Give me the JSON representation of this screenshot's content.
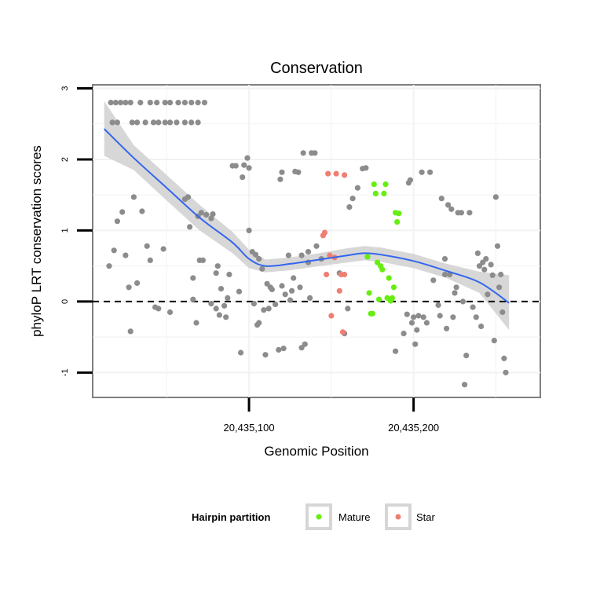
{
  "chart_data": {
    "type": "scatter",
    "title": "Conservation",
    "xlabel": "Genomic Position",
    "ylabel": "phyloP LRT conservation scores",
    "xlim": [
      20435005,
      20435277
    ],
    "ylim": [
      -1.35,
      3.05
    ],
    "x_ticks": [
      {
        "value": 20435100,
        "label": "20,435,100"
      },
      {
        "value": 20435200,
        "label": "20,435,200"
      }
    ],
    "y_ticks": [
      {
        "value": -1,
        "label": "-1"
      },
      {
        "value": 0,
        "label": "0"
      },
      {
        "value": 1,
        "label": "1"
      },
      {
        "value": 2,
        "label": "2"
      },
      {
        "value": 3,
        "label": "3"
      }
    ],
    "reference_line": {
      "y": 0,
      "style": "dashed"
    },
    "legend": {
      "title": "Hairpin partition",
      "position": "bottom",
      "entries": [
        {
          "label": "Mature",
          "color": "#66ee11"
        },
        {
          "label": "Star",
          "color": "#ef7f72"
        }
      ]
    },
    "colors": {
      "other": "#8c8c8c",
      "Mature": "#66ee11",
      "Star": "#ef7f72",
      "smooth": "#3366ee",
      "band": "#d3d3d3"
    },
    "series": [
      {
        "name": "Other",
        "points": [
          [
            20435016,
            2.8
          ],
          [
            20435019,
            2.8
          ],
          [
            20435022,
            2.8
          ],
          [
            20435025,
            2.8
          ],
          [
            20435028,
            2.8
          ],
          [
            20435034,
            2.8
          ],
          [
            20435040,
            2.8
          ],
          [
            20435044,
            2.8
          ],
          [
            20435049,
            2.8
          ],
          [
            20435052,
            2.8
          ],
          [
            20435057,
            2.8
          ],
          [
            20435061,
            2.8
          ],
          [
            20435065,
            2.8
          ],
          [
            20435069,
            2.8
          ],
          [
            20435073,
            2.8
          ],
          [
            20435017,
            2.52
          ],
          [
            20435020,
            2.52
          ],
          [
            20435029,
            2.52
          ],
          [
            20435032,
            2.52
          ],
          [
            20435037,
            2.52
          ],
          [
            20435042,
            2.52
          ],
          [
            20435045,
            2.52
          ],
          [
            20435049,
            2.52
          ],
          [
            20435052,
            2.52
          ],
          [
            20435056,
            2.52
          ],
          [
            20435061,
            2.52
          ],
          [
            20435065,
            2.52
          ],
          [
            20435069,
            2.52
          ],
          [
            20435015,
            0.5
          ],
          [
            20435018,
            0.72
          ],
          [
            20435020,
            1.13
          ],
          [
            20435023,
            1.26
          ],
          [
            20435025,
            0.65
          ],
          [
            20435027,
            0.2
          ],
          [
            20435028,
            -0.42
          ],
          [
            20435030,
            1.47
          ],
          [
            20435032,
            0.26
          ],
          [
            20435035,
            1.27
          ],
          [
            20435038,
            0.78
          ],
          [
            20435040,
            0.58
          ],
          [
            20435043,
            -0.08
          ],
          [
            20435045,
            -0.1
          ],
          [
            20435048,
            0.74
          ],
          [
            20435052,
            -0.15
          ],
          [
            20435061,
            1.44
          ],
          [
            20435063,
            1.47
          ],
          [
            20435064,
            1.05
          ],
          [
            20435066,
            0.33
          ],
          [
            20435066,
            0.03
          ],
          [
            20435068,
            -0.3
          ],
          [
            20435069,
            1.2
          ],
          [
            20435070,
            0.58
          ],
          [
            20435071,
            1.25
          ],
          [
            20435072,
            0.58
          ],
          [
            20435074,
            1.22
          ],
          [
            20435077,
            1.17
          ],
          [
            20435078,
            1.23
          ],
          [
            20435080,
            0.4
          ],
          [
            20435081,
            0.5
          ],
          [
            20435077,
            -0.03
          ],
          [
            20435080,
            -0.1
          ],
          [
            20435083,
            0.18
          ],
          [
            20435082,
            -0.19
          ],
          [
            20435085,
            -0.06
          ],
          [
            20435086,
            -0.22
          ],
          [
            20435087,
            0.05
          ],
          [
            20435088,
            0.38
          ],
          [
            20435090,
            1.91
          ],
          [
            20435092,
            1.91
          ],
          [
            20435094,
            0.14
          ],
          [
            20435095,
            -0.72
          ],
          [
            20435096,
            1.75
          ],
          [
            20435097,
            1.92
          ],
          [
            20435099,
            2.02
          ],
          [
            20435100,
            1.88
          ],
          [
            20435100,
            1.0
          ],
          [
            20435102,
            0.7
          ],
          [
            20435103,
            -0.03
          ],
          [
            20435104,
            0.66
          ],
          [
            20435105,
            -0.33
          ],
          [
            20435106,
            0.6
          ],
          [
            20435106,
            -0.3
          ],
          [
            20435108,
            0.46
          ],
          [
            20435109,
            -0.12
          ],
          [
            20435110,
            -0.75
          ],
          [
            20435111,
            0.25
          ],
          [
            20435112,
            -0.1
          ],
          [
            20435113,
            0.2
          ],
          [
            20435114,
            0.17
          ],
          [
            20435116,
            -0.04
          ],
          [
            20435118,
            -0.68
          ],
          [
            20435119,
            1.72
          ],
          [
            20435120,
            1.82
          ],
          [
            20435120,
            0.22
          ],
          [
            20435121,
            -0.66
          ],
          [
            20435122,
            0.1
          ],
          [
            20435124,
            0.65
          ],
          [
            20435125,
            0.02
          ],
          [
            20435126,
            0.15
          ],
          [
            20435127,
            0.33
          ],
          [
            20435128,
            1.83
          ],
          [
            20435130,
            1.82
          ],
          [
            20435131,
            0.2
          ],
          [
            20435132,
            0.65
          ],
          [
            20435132,
            -0.65
          ],
          [
            20435133,
            2.09
          ],
          [
            20435134,
            -0.6
          ],
          [
            20435136,
            0.55
          ],
          [
            20435136,
            0.7
          ],
          [
            20435137,
            0.05
          ],
          [
            20435138,
            2.09
          ],
          [
            20435140,
            2.09
          ],
          [
            20435141,
            0.78
          ],
          [
            20435144,
            0.6
          ],
          [
            20435155,
            0.4
          ],
          [
            20435158,
            -0.45
          ],
          [
            20435160,
            -0.1
          ],
          [
            20435161,
            1.33
          ],
          [
            20435163,
            1.45
          ],
          [
            20435166,
            1.6
          ],
          [
            20435169,
            1.87
          ],
          [
            20435171,
            1.88
          ],
          [
            20435189,
            -0.7
          ],
          [
            20435194,
            -0.45
          ],
          [
            20435196,
            -0.18
          ],
          [
            20435197,
            1.67
          ],
          [
            20435198,
            1.71
          ],
          [
            20435199,
            -0.3
          ],
          [
            20435200,
            -0.22
          ],
          [
            20435201,
            -0.6
          ],
          [
            20435202,
            -0.4
          ],
          [
            20435203,
            -0.2
          ],
          [
            20435205,
            1.82
          ],
          [
            20435206,
            -0.22
          ],
          [
            20435208,
            -0.3
          ],
          [
            20435210,
            1.82
          ],
          [
            20435212,
            0.3
          ],
          [
            20435215,
            -0.05
          ],
          [
            20435216,
            -0.2
          ],
          [
            20435217,
            1.45
          ],
          [
            20435219,
            0.6
          ],
          [
            20435219,
            0.38
          ],
          [
            20435220,
            -0.38
          ],
          [
            20435221,
            1.36
          ],
          [
            20435222,
            0.38
          ],
          [
            20435223,
            1.3
          ],
          [
            20435224,
            -0.22
          ],
          [
            20435225,
            0.12
          ],
          [
            20435226,
            0.2
          ],
          [
            20435227,
            1.25
          ],
          [
            20435229,
            1.25
          ],
          [
            20435230,
            0.0
          ],
          [
            20435231,
            -1.17
          ],
          [
            20435232,
            -0.76
          ],
          [
            20435234,
            1.25
          ],
          [
            20435236,
            -0.08
          ],
          [
            20435238,
            -0.22
          ],
          [
            20435239,
            0.68
          ],
          [
            20435240,
            0.5
          ],
          [
            20435241,
            -0.35
          ],
          [
            20435242,
            0.55
          ],
          [
            20435243,
            0.45
          ],
          [
            20435244,
            0.6
          ],
          [
            20435245,
            0.1
          ],
          [
            20435247,
            0.52
          ],
          [
            20435248,
            0.37
          ],
          [
            20435249,
            -0.55
          ],
          [
            20435250,
            1.47
          ],
          [
            20435251,
            0.78
          ],
          [
            20435252,
            0.2
          ],
          [
            20435253,
            0.38
          ],
          [
            20435254,
            -0.15
          ],
          [
            20435255,
            -0.8
          ],
          [
            20435256,
            -1.0
          ]
        ]
      },
      {
        "name": "Mature",
        "points": [
          [
            20435172,
            0.63
          ],
          [
            20435173,
            0.12
          ],
          [
            20435174,
            -0.17
          ],
          [
            20435175,
            -0.17
          ],
          [
            20435176,
            1.65
          ],
          [
            20435177,
            1.52
          ],
          [
            20435178,
            0.55
          ],
          [
            20435179,
            0.03
          ],
          [
            20435180,
            0.5
          ],
          [
            20435181,
            0.45
          ],
          [
            20435182,
            1.52
          ],
          [
            20435183,
            1.65
          ],
          [
            20435184,
            0.05
          ],
          [
            20435185,
            0.33
          ],
          [
            20435186,
            0.01
          ],
          [
            20435187,
            0.05
          ],
          [
            20435188,
            0.2
          ],
          [
            20435189,
            1.25
          ],
          [
            20435190,
            1.12
          ],
          [
            20435191,
            1.24
          ]
        ]
      },
      {
        "name": "Star",
        "points": [
          [
            20435145,
            0.93
          ],
          [
            20435146,
            0.97
          ],
          [
            20435147,
            0.38
          ],
          [
            20435148,
            1.8
          ],
          [
            20435149,
            0.65
          ],
          [
            20435150,
            -0.2
          ],
          [
            20435152,
            0.62
          ],
          [
            20435153,
            1.8
          ],
          [
            20435155,
            0.15
          ],
          [
            20435156,
            0.38
          ],
          [
            20435157,
            -0.43
          ],
          [
            20435158,
            0.38
          ],
          [
            20435158,
            1.78
          ]
        ]
      }
    ],
    "smooth": {
      "x": [
        20435012,
        20435030,
        20435050,
        20435070,
        20435090,
        20435100,
        20435110,
        20435125,
        20435140,
        20435160,
        20435170,
        20435180,
        20435200,
        20435220,
        20435240,
        20435258
      ],
      "y": [
        2.43,
        2.02,
        1.6,
        1.18,
        0.83,
        0.6,
        0.5,
        0.53,
        0.58,
        0.65,
        0.68,
        0.66,
        0.57,
        0.43,
        0.27,
        -0.02
      ],
      "lower": [
        2.05,
        1.85,
        1.42,
        1.0,
        0.68,
        0.47,
        0.41,
        0.44,
        0.49,
        0.55,
        0.58,
        0.56,
        0.47,
        0.33,
        0.12,
        -0.4
      ],
      "upper": [
        2.82,
        2.2,
        1.78,
        1.36,
        0.98,
        0.73,
        0.59,
        0.62,
        0.67,
        0.75,
        0.78,
        0.76,
        0.67,
        0.53,
        0.42,
        0.37
      ]
    }
  }
}
